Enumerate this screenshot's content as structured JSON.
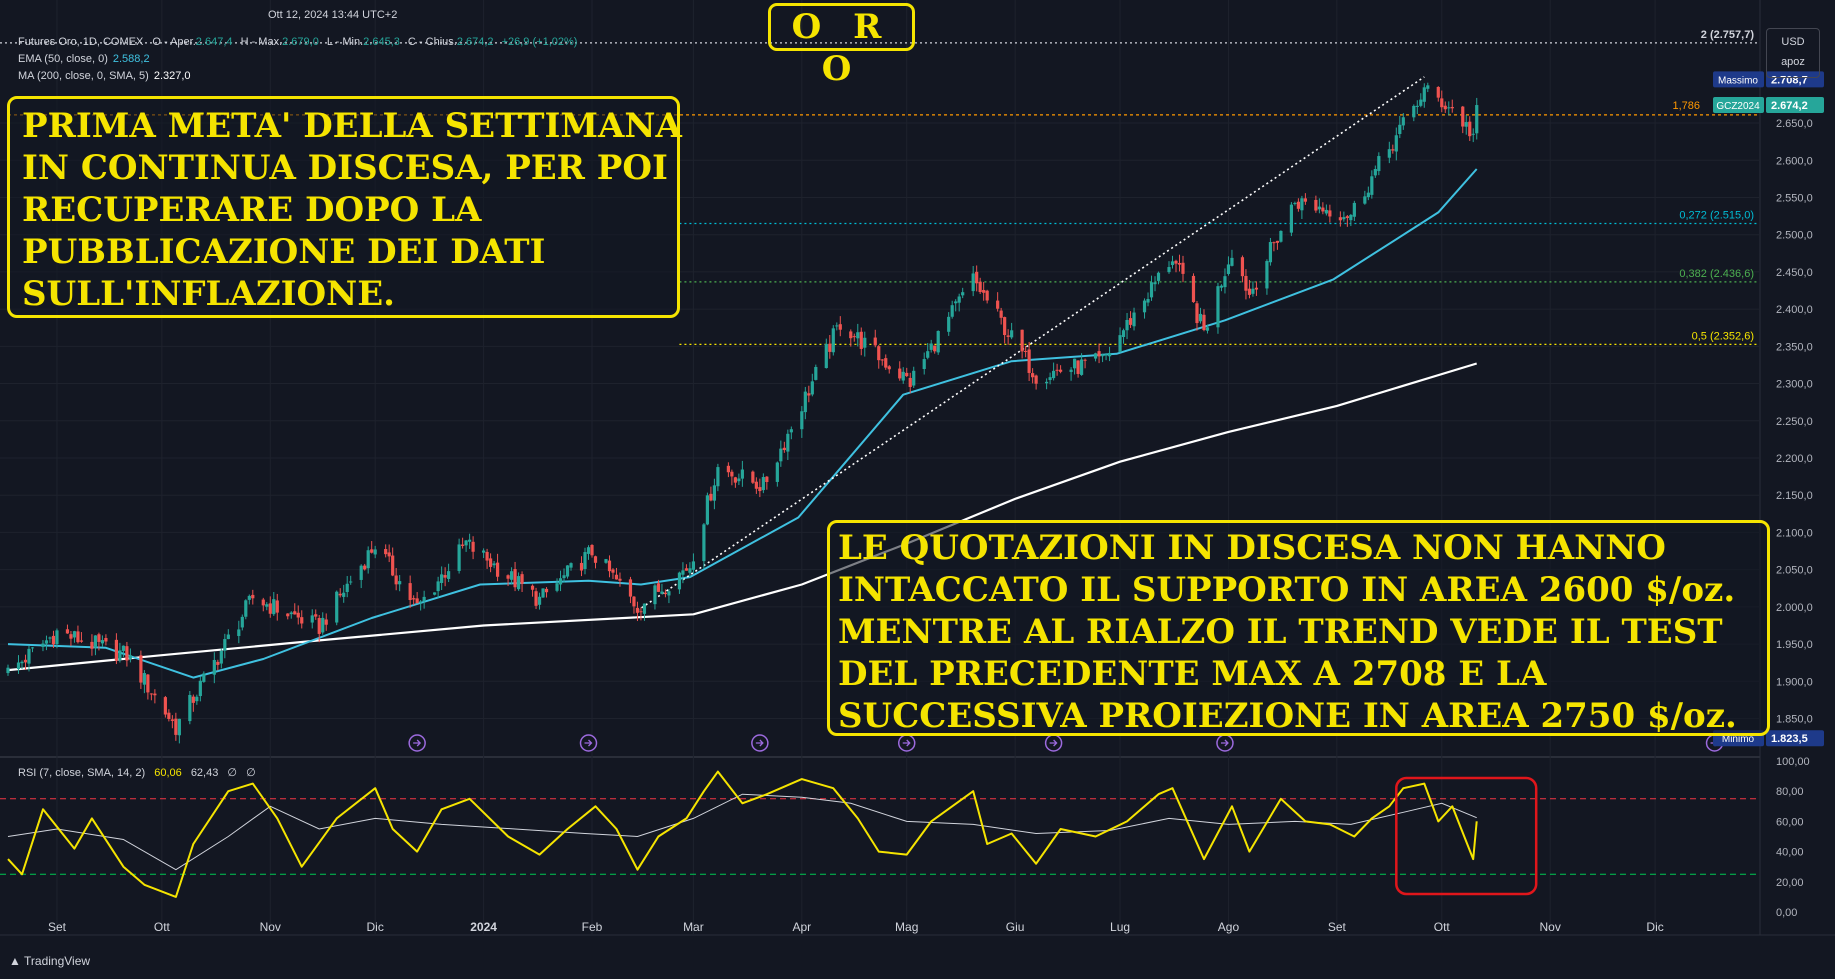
{
  "header": {
    "datetime": "Ott 12, 2024 13:44 UTC+2",
    "title": "O R O",
    "symbol": "Futures Oro, 1D, COMEX",
    "ohlc": [
      {
        "label": "O - Aper.",
        "value": "2.647,4"
      },
      {
        "label": "H - Max.",
        "value": "2.679,0"
      },
      {
        "label": "L - Min.",
        "value": "2.645,3"
      },
      {
        "label": "C - Chius.",
        "value": "2.674,2"
      }
    ],
    "change": "+26,9 (+1,02%)",
    "ema_label": "EMA (50, close, 0)",
    "ema_value": "2.588,2",
    "ma_label": "MA (200, close, 0, SMA, 5)",
    "ma_value": "2.327,0",
    "currency": "USD",
    "currency_sub": "apoz"
  },
  "callouts": {
    "left": [
      "PRIMA META' DELLA SETTIMANA",
      "IN CONTINUA DISCESA, PER POI",
      "RECUPERARE DOPO LA",
      "PUBBLICAZIONE DEI DATI",
      "SULL'INFLAZIONE."
    ],
    "right": [
      "LE QUOTAZIONI IN DISCESA NON HANNO",
      "INTACCATO IL SUPPORTO IN AREA 2600 $/oz.",
      "MENTRE AL RIALZO IL TREND VEDE IL TEST",
      "DEL PRECEDENTE MAX A 2708 E LA",
      "SUCCESSIVA PROIEZIONE IN AREA 2750 $/oz."
    ]
  },
  "footer": {
    "brand": "TradingView"
  },
  "colors": {
    "background": "#131722",
    "up": "#26a69a",
    "down": "#ef5350",
    "ema": "#3fc1e0",
    "ma": "#ffffff",
    "rsi": "#f5e400",
    "rsi_ma": "#d1d4dc",
    "annotation": "#f5e400",
    "highlight_box": "#e0161b",
    "fib_272": "#00bcd4",
    "fib_382": "#4caf50",
    "fib_05": "#f5e400",
    "fib_2": "#d1d4dc",
    "current_price": "#ff9800",
    "overbought": "#f23645",
    "oversold": "#00c853"
  },
  "chart_data": [
    {
      "type": "candlestick",
      "title": "Futures Oro, 1D, COMEX",
      "x_axis": {
        "tick_labels": [
          "Set",
          "Ott",
          "Nov",
          "Dic",
          "2024",
          "Feb",
          "Mar",
          "Apr",
          "Mag",
          "Giu",
          "Lug",
          "Ago",
          "Set",
          "Ott",
          "Nov",
          "Dic"
        ],
        "start": "2023-08-18",
        "end": "2024-12-31"
      },
      "y_axis": {
        "ylim": [
          1805,
          2775
        ],
        "ticks": [
          1850,
          1900,
          1950,
          2000,
          2050,
          2100,
          2150,
          2200,
          2250,
          2300,
          2350,
          2400,
          2450,
          2500,
          2550,
          2600,
          2650
        ],
        "tick_labels": [
          "1.850,0",
          "1.900,0",
          "1.950,0",
          "2.000,0",
          "2.050,0",
          "2.100,0",
          "2.150,0",
          "2.200,0",
          "2.250,0",
          "2.300,0",
          "2.350,0",
          "2.400,0",
          "2.450,0",
          "2.500,0",
          "2.550,0",
          "2.600,0",
          "2.650,0"
        ]
      },
      "price_path": [
        {
          "date": "2023-08-18",
          "close": 1912
        },
        {
          "date": "2023-09-01",
          "close": 1966
        },
        {
          "date": "2023-09-21",
          "close": 1935
        },
        {
          "date": "2023-10-05",
          "close": 1838
        },
        {
          "date": "2023-10-27",
          "close": 2012
        },
        {
          "date": "2023-11-15",
          "close": 1973
        },
        {
          "date": "2023-12-01",
          "close": 2084
        },
        {
          "date": "2023-12-13",
          "close": 1998
        },
        {
          "date": "2023-12-27",
          "close": 2085
        },
        {
          "date": "2024-01-17",
          "close": 2009
        },
        {
          "date": "2024-02-01",
          "close": 2074
        },
        {
          "date": "2024-02-14",
          "close": 2000
        },
        {
          "date": "2024-02-29",
          "close": 2056
        },
        {
          "date": "2024-03-08",
          "close": 2187
        },
        {
          "date": "2024-03-21",
          "close": 2162
        },
        {
          "date": "2024-04-12",
          "close": 2382
        },
        {
          "date": "2024-04-22",
          "close": 2340
        },
        {
          "date": "2024-05-02",
          "close": 2302
        },
        {
          "date": "2024-05-20",
          "close": 2440
        },
        {
          "date": "2024-06-07",
          "close": 2311
        },
        {
          "date": "2024-06-26",
          "close": 2330
        },
        {
          "date": "2024-07-16",
          "close": 2470
        },
        {
          "date": "2024-07-25",
          "close": 2370
        },
        {
          "date": "2024-08-02",
          "close": 2480
        },
        {
          "date": "2024-08-07",
          "close": 2420
        },
        {
          "date": "2024-08-20",
          "close": 2545
        },
        {
          "date": "2024-09-05",
          "close": 2527
        },
        {
          "date": "2024-09-12",
          "close": 2585
        },
        {
          "date": "2024-09-26",
          "close": 2694
        },
        {
          "date": "2024-10-04",
          "close": 2669
        },
        {
          "date": "2024-10-10",
          "close": 2634
        },
        {
          "date": "2024-10-11",
          "close": 2674.2
        }
      ],
      "series": [
        {
          "name": "EMA (50, close, 0)",
          "last": 2588.2,
          "points": [
            [
              "2023-08-18",
              1950
            ],
            [
              "2023-09-15",
              1945
            ],
            [
              "2023-10-10",
              1905
            ],
            [
              "2023-10-30",
              1930
            ],
            [
              "2023-11-30",
              1985
            ],
            [
              "2023-12-31",
              2030
            ],
            [
              "2024-01-31",
              2035
            ],
            [
              "2024-02-15",
              2030
            ],
            [
              "2024-02-29",
              2040
            ],
            [
              "2024-03-31",
              2120
            ],
            [
              "2024-04-30",
              2285
            ],
            [
              "2024-05-31",
              2330
            ],
            [
              "2024-06-30",
              2340
            ],
            [
              "2024-07-31",
              2385
            ],
            [
              "2024-08-31",
              2440
            ],
            [
              "2024-09-30",
              2530
            ],
            [
              "2024-10-11",
              2588.2
            ]
          ]
        },
        {
          "name": "MA (200, close, 0, SMA, 5)",
          "last": 2327.0,
          "points": [
            [
              "2023-08-18",
              1915
            ],
            [
              "2023-10-01",
              1935
            ],
            [
              "2023-11-15",
              1955
            ],
            [
              "2024-01-01",
              1975
            ],
            [
              "2024-03-01",
              1990
            ],
            [
              "2024-04-01",
              2030
            ],
            [
              "2024-05-01",
              2085
            ],
            [
              "2024-06-01",
              2145
            ],
            [
              "2024-07-01",
              2195
            ],
            [
              "2024-08-01",
              2235
            ],
            [
              "2024-09-01",
              2270
            ],
            [
              "2024-10-11",
              2327.0
            ]
          ]
        }
      ],
      "trendline": {
        "from": [
          "2024-02-14",
          1995
        ],
        "to": [
          "2024-09-26",
          2712
        ],
        "style": "dotted"
      },
      "horizontal_levels": [
        {
          "label": "2 (2.757,7)",
          "value": 2757.7,
          "style": "dotted"
        },
        {
          "label": "0,272 (2.515,0)",
          "value": 2515.0,
          "style": "dotted"
        },
        {
          "label": "0,382 (2.436,6)",
          "value": 2436.6,
          "style": "dotted"
        },
        {
          "label": "0,5 (2.352,6)",
          "value": 2352.6,
          "style": "dotted"
        },
        {
          "label": "1,786",
          "value": 2661,
          "style": "dotted"
        }
      ],
      "price_badges": [
        {
          "label": "Massimo",
          "value": "2.708,7",
          "price": 2708.7
        },
        {
          "label": "GCZ2024",
          "value": "2.674,2",
          "price": 2674.2
        },
        {
          "label": "Minimo",
          "value": "1.823,5",
          "price": 1823.5
        }
      ],
      "event_markers": [
        "2023-12-13",
        "2024-01-31",
        "2024-03-20",
        "2024-05-01",
        "2024-06-12",
        "2024-07-31",
        "2024-12-18"
      ]
    },
    {
      "type": "line",
      "title": "RSI (7, close, SMA, 14, 2)",
      "legend_values": [
        "60,06",
        "62,43",
        "∅",
        "∅"
      ],
      "y_axis": {
        "ylim": [
          0,
          100
        ],
        "ticks": [
          0,
          20,
          40,
          60,
          80,
          100
        ],
        "tick_labels": [
          "0,00",
          "20,00",
          "40,00",
          "60,00",
          "80,00",
          "100,00"
        ]
      },
      "bands": {
        "overbought": 75,
        "oversold": 25
      },
      "series": [
        {
          "name": "RSI",
          "last": 60.06,
          "points": [
            [
              "2023-08-18",
              35
            ],
            [
              "2023-08-22",
              25
            ],
            [
              "2023-08-28",
              68
            ],
            [
              "2023-09-06",
              42
            ],
            [
              "2023-09-11",
              62
            ],
            [
              "2023-09-20",
              30
            ],
            [
              "2023-09-26",
              18
            ],
            [
              "2023-10-05",
              10
            ],
            [
              "2023-10-10",
              45
            ],
            [
              "2023-10-20",
              80
            ],
            [
              "2023-10-27",
              85
            ],
            [
              "2023-11-03",
              62
            ],
            [
              "2023-11-10",
              30
            ],
            [
              "2023-11-20",
              62
            ],
            [
              "2023-12-01",
              82
            ],
            [
              "2023-12-06",
              55
            ],
            [
              "2023-12-13",
              40
            ],
            [
              "2023-12-20",
              68
            ],
            [
              "2023-12-28",
              75
            ],
            [
              "2024-01-08",
              50
            ],
            [
              "2024-01-17",
              38
            ],
            [
              "2024-01-25",
              55
            ],
            [
              "2024-02-02",
              70
            ],
            [
              "2024-02-08",
              55
            ],
            [
              "2024-02-14",
              28
            ],
            [
              "2024-02-20",
              50
            ],
            [
              "2024-02-28",
              62
            ],
            [
              "2024-03-04",
              80
            ],
            [
              "2024-03-08",
              93
            ],
            [
              "2024-03-15",
              72
            ],
            [
              "2024-03-22",
              78
            ],
            [
              "2024-04-01",
              88
            ],
            [
              "2024-04-10",
              82
            ],
            [
              "2024-04-17",
              62
            ],
            [
              "2024-04-23",
              40
            ],
            [
              "2024-05-01",
              38
            ],
            [
              "2024-05-08",
              60
            ],
            [
              "2024-05-20",
              80
            ],
            [
              "2024-05-24",
              45
            ],
            [
              "2024-05-31",
              52
            ],
            [
              "2024-06-07",
              32
            ],
            [
              "2024-06-14",
              55
            ],
            [
              "2024-06-24",
              50
            ],
            [
              "2024-07-03",
              60
            ],
            [
              "2024-07-12",
              78
            ],
            [
              "2024-07-16",
              82
            ],
            [
              "2024-07-25",
              35
            ],
            [
              "2024-08-02",
              70
            ],
            [
              "2024-08-07",
              40
            ],
            [
              "2024-08-16",
              75
            ],
            [
              "2024-08-23",
              60
            ],
            [
              "2024-08-30",
              58
            ],
            [
              "2024-09-06",
              50
            ],
            [
              "2024-09-11",
              62
            ],
            [
              "2024-09-16",
              70
            ],
            [
              "2024-09-20",
              82
            ],
            [
              "2024-09-26",
              85
            ],
            [
              "2024-09-30",
              60
            ],
            [
              "2024-10-04",
              70
            ],
            [
              "2024-10-10",
              35
            ],
            [
              "2024-10-11",
              60.06
            ]
          ]
        },
        {
          "name": "RSI SMA",
          "last": 62.43,
          "points": [
            [
              "2023-08-18",
              50
            ],
            [
              "2023-09-01",
              55
            ],
            [
              "2023-09-20",
              48
            ],
            [
              "2023-10-05",
              28
            ],
            [
              "2023-10-20",
              50
            ],
            [
              "2023-11-01",
              70
            ],
            [
              "2023-11-15",
              55
            ],
            [
              "2023-12-01",
              62
            ],
            [
              "2023-12-20",
              58
            ],
            [
              "2024-01-10",
              55
            ],
            [
              "2024-01-30",
              52
            ],
            [
              "2024-02-14",
              50
            ],
            [
              "2024-03-01",
              62
            ],
            [
              "2024-03-15",
              78
            ],
            [
              "2024-04-01",
              76
            ],
            [
              "2024-04-15",
              72
            ],
            [
              "2024-05-01",
              60
            ],
            [
              "2024-05-20",
              58
            ],
            [
              "2024-06-07",
              52
            ],
            [
              "2024-06-28",
              54
            ],
            [
              "2024-07-15",
              62
            ],
            [
              "2024-08-01",
              58
            ],
            [
              "2024-08-20",
              60
            ],
            [
              "2024-09-05",
              58
            ],
            [
              "2024-09-20",
              66
            ],
            [
              "2024-10-01",
              72
            ],
            [
              "2024-10-11",
              62.43
            ]
          ]
        }
      ],
      "highlight": {
        "from": "2024-09-18",
        "to": "2024-10-28"
      }
    }
  ]
}
